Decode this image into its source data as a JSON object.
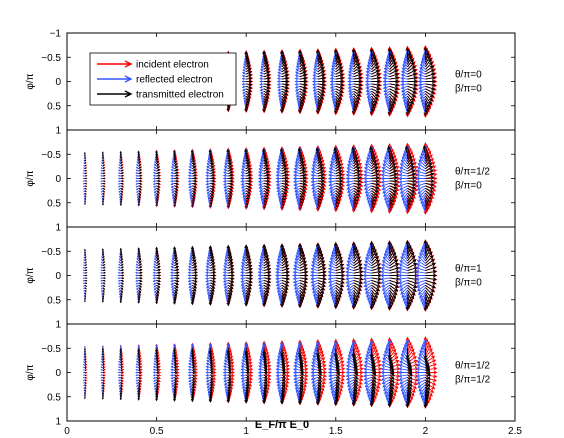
{
  "chart_data": {
    "type": "scatter",
    "description": "quiver",
    "xlabel": "E_F/π E_0",
    "x_ticks": [
      "0",
      "0.5",
      "1",
      "1.5",
      "2",
      "2.5"
    ],
    "xlim": [
      0,
      2.5
    ],
    "ylabel": "φ/π",
    "ylim": [
      -1,
      1
    ],
    "y_ticks": [
      "−1",
      "−0.5",
      "0",
      "0.5",
      "1"
    ],
    "legend": {
      "placement": "top-left of first panel",
      "entries": [
        {
          "label": "incident electron",
          "color": "#ff0000"
        },
        {
          "label": "reflected electron",
          "color": "#3355ff"
        },
        {
          "label": "transmitted electron",
          "color": "#000000"
        }
      ]
    },
    "x_positions": [
      0.1,
      0.2,
      0.3,
      0.4,
      0.5,
      0.6,
      0.7,
      0.8,
      0.9,
      1.0,
      1.1,
      1.2,
      1.3,
      1.4,
      1.5,
      1.6,
      1.7,
      1.8,
      1.9,
      2.0
    ],
    "panels": [
      {
        "label_theta": "θ/π=0",
        "label_beta": "β/π=0",
        "x_start": 0.85,
        "reflected_scale": 0.6,
        "transmitted_scale": 0.85,
        "transmitted_skew": 0.0
      },
      {
        "label_theta": "θ/π=1/2",
        "label_beta": "β/π=0",
        "x_start": 0.1,
        "reflected_scale": 0.8,
        "transmitted_scale": 0.75,
        "transmitted_skew": 0.15
      },
      {
        "label_theta": "θ/π=1",
        "label_beta": "β/π=0",
        "x_start": 0.1,
        "reflected_scale": 0.85,
        "transmitted_scale": 0.95,
        "transmitted_skew": 0.0
      },
      {
        "label_theta": "θ/π=1/2",
        "label_beta": "β/π=1/2",
        "x_start": 0.1,
        "reflected_scale": 0.8,
        "transmitted_scale": 0.75,
        "transmitted_skew": -0.6
      }
    ]
  }
}
